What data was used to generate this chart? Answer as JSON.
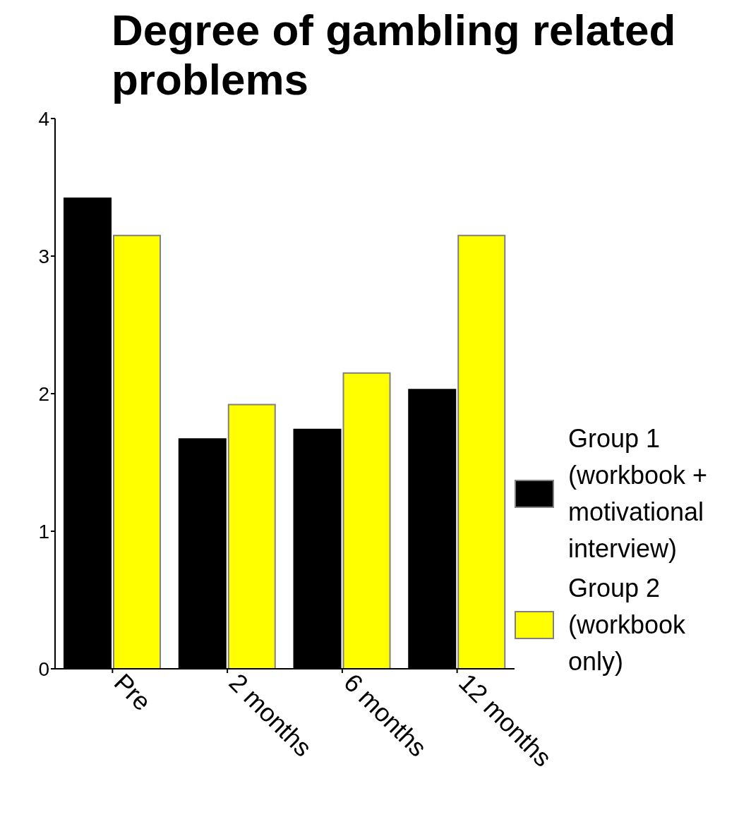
{
  "chart_data": {
    "type": "bar",
    "title": "Degree of gambling related problems",
    "categories": [
      "Pre",
      "2 months",
      "6 months",
      "12 months"
    ],
    "series": [
      {
        "name": "Group 1 (workbook + motivational interview)",
        "color": "#000000",
        "values": [
          3.42,
          1.67,
          1.74,
          2.03
        ]
      },
      {
        "name": "Group 2 (workbook only)",
        "color": "#ffff00",
        "values": [
          3.15,
          1.92,
          2.15,
          3.15
        ]
      }
    ],
    "ylim": [
      0,
      4
    ],
    "yticks": [
      0,
      1,
      2,
      3,
      4
    ],
    "grid": false,
    "legend": "bottom right"
  }
}
